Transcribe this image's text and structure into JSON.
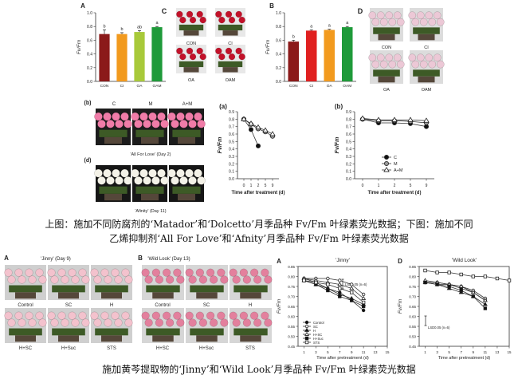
{
  "captions": {
    "line1": "上图：施加不同防腐剂的‘Matador’和‘Dolcetto’月季品种 Fv/Fm 叶绿素荧光数据；下图：施加不同",
    "line2": "乙烯抑制剂‘All For Love’和‘Afnity’月季品种 Fv/Fm 叶绿素荧光数据",
    "line3": "施加黄芩提取物的‘Jinny’和‘Wild Look’月季品种 Fv/Fm 叶绿素荧光数据"
  },
  "photo_panels": {
    "C": {
      "letter": "C",
      "labels": [
        "CON",
        "CI",
        "OA",
        "OAM"
      ]
    },
    "D": {
      "letter": "D",
      "labels": [
        "CON",
        "CI",
        "OA",
        "OAM"
      ]
    },
    "b": {
      "letter": "(b)",
      "labels": [
        "C",
        "M",
        "A+M"
      ],
      "caption": "'All For Love' (Day 2)"
    },
    "d": {
      "letter": "(d)",
      "caption": "'Afinity' (Day 11)"
    },
    "A2": {
      "letter": "A",
      "title": "'Jinny' (Day 9)",
      "labels": [
        "Control",
        "SC",
        "H",
        "H+SC",
        "H+Suc",
        "STS"
      ]
    },
    "B2": {
      "letter": "B",
      "title": "'Wild Look' (Day 13)",
      "labels": [
        "Control",
        "SC",
        "H",
        "H+SC",
        "H+Suc",
        "STS"
      ]
    }
  },
  "colors": {
    "bar_dark_red": "#8b1a1a",
    "bar_red": "#e02020",
    "bar_orange": "#f29a1e",
    "bar_yellow_green": "#a8c93a",
    "bar_green": "#1f9a3a",
    "axis": "#333333"
  },
  "chart_data": [
    {
      "id": "A",
      "type": "bar",
      "panel_label": "A",
      "categories": [
        "CON",
        "CI",
        "OA",
        "OAM"
      ],
      "values": [
        0.69,
        0.69,
        0.72,
        0.79
      ],
      "errors": [
        0.06,
        0.02,
        0.02,
        0.01
      ],
      "letters": [
        "b",
        "b",
        "ab",
        "a"
      ],
      "colors": [
        "#8b1a1a",
        "#f29a1e",
        "#a8c93a",
        "#1f9a3a"
      ],
      "ylabel": "Fv/Fm",
      "ylim": [
        0.0,
        1.0
      ],
      "yticks": [
        "0.0",
        "0.2",
        "0.4",
        "0.6",
        "0.8",
        "1.0"
      ]
    },
    {
      "id": "B",
      "type": "bar",
      "panel_label": "B",
      "categories": [
        "CON",
        "CI",
        "OA",
        "OAM"
      ],
      "values": [
        0.58,
        0.74,
        0.75,
        0.79
      ],
      "errors": [
        0.02,
        0.01,
        0.01,
        0.01
      ],
      "letters": [
        "b",
        "a",
        "a",
        "a"
      ],
      "colors": [
        "#8b1a1a",
        "#e02020",
        "#f29a1e",
        "#1f9a3a"
      ],
      "ylabel": "Fv/Fm",
      "ylim": [
        0.0,
        1.0
      ],
      "yticks": [
        "0.0",
        "0.2",
        "0.4",
        "0.6",
        "0.8",
        "1.0"
      ]
    },
    {
      "id": "a",
      "type": "line",
      "panel_label": "(a)",
      "x_ticks": [
        "0",
        "1",
        "2",
        "5",
        "9"
      ],
      "xlabel": "Time after treatment (d)",
      "ylabel": "Fv/Fm",
      "ylim": [
        0.0,
        0.9
      ],
      "yticks": [
        "0.0",
        "0.1",
        "0.2",
        "0.3",
        "0.4",
        "0.5",
        "0.6",
        "0.7",
        "0.8",
        "0.9"
      ],
      "series": [
        {
          "marker": "filled-circle",
          "values": [
            0.8,
            0.66,
            0.44,
            null,
            null
          ]
        },
        {
          "marker": "gray-circle",
          "values": [
            0.8,
            0.73,
            0.67,
            0.63,
            0.57
          ]
        },
        {
          "marker": "open-triangle",
          "values": [
            0.8,
            0.74,
            0.69,
            0.65,
            0.6
          ]
        }
      ]
    },
    {
      "id": "b_line",
      "type": "line",
      "panel_label": "(b)",
      "x_ticks": [
        "0",
        "1",
        "2",
        "5",
        "9"
      ],
      "xlabel": "Time after treatment (d)",
      "ylabel": "Fv/Fm",
      "ylim": [
        0.0,
        0.9
      ],
      "yticks": [
        "0.0",
        "0.1",
        "0.2",
        "0.3",
        "0.4",
        "0.5",
        "0.6",
        "0.7",
        "0.8",
        "0.9"
      ],
      "legend": [
        "C",
        "M",
        "A+M"
      ],
      "series": [
        {
          "name": "C",
          "marker": "filled-circle",
          "values": [
            0.8,
            0.75,
            0.75,
            0.74,
            0.7
          ]
        },
        {
          "name": "M",
          "marker": "gray-circle",
          "values": [
            0.8,
            0.78,
            0.78,
            0.77,
            0.75
          ]
        },
        {
          "name": "A+M",
          "marker": "open-triangle",
          "values": [
            0.81,
            0.79,
            0.79,
            0.79,
            0.78
          ]
        }
      ]
    },
    {
      "id": "Jinny",
      "type": "line",
      "panel_label": "A",
      "title": "'Jinny'",
      "x": [
        1,
        3,
        5,
        7,
        9,
        11
      ],
      "xticks": [
        "1",
        "3",
        "5",
        "7",
        "9",
        "11",
        "13",
        "15"
      ],
      "xlabel": "Time after pretreatment (d)",
      "ylabel": "Fv/Fm",
      "ylim": [
        0.45,
        0.85
      ],
      "yticks": [
        "0.45",
        "0.50",
        "0.55",
        "0.60",
        "0.65",
        "0.70",
        "0.75",
        "0.80",
        "0.85"
      ],
      "lsd_label": "LSD0.05 (n=6)",
      "legend": [
        "Control",
        "SC",
        "H",
        "H+SC",
        "H+Suc",
        "STS"
      ],
      "series": [
        {
          "name": "Control",
          "marker": "filled-circle",
          "values": [
            0.79,
            0.77,
            0.74,
            0.72,
            0.68,
            0.63
          ]
        },
        {
          "name": "SC",
          "marker": "open-circle",
          "values": [
            0.79,
            0.79,
            0.79,
            0.78,
            0.76,
            0.71
          ]
        },
        {
          "name": "H",
          "marker": "filled-triangle",
          "values": [
            0.78,
            0.76,
            0.74,
            0.71,
            0.69,
            0.66
          ]
        },
        {
          "name": "H+SC",
          "marker": "open-triangle",
          "values": [
            0.79,
            0.78,
            0.77,
            0.76,
            0.74,
            0.69
          ]
        },
        {
          "name": "H+Suc",
          "marker": "filled-square",
          "values": [
            0.78,
            0.76,
            0.73,
            0.7,
            0.68,
            0.65
          ]
        },
        {
          "name": "STS",
          "marker": "open-square",
          "values": [
            0.78,
            0.77,
            0.76,
            0.74,
            0.72,
            0.67
          ]
        }
      ]
    },
    {
      "id": "WildLook",
      "type": "line",
      "panel_label": "D",
      "title": "'Wild Look'",
      "x": [
        1,
        3,
        5,
        7,
        9,
        11,
        13,
        15
      ],
      "xticks": [
        "1",
        "3",
        "5",
        "7",
        "9",
        "11",
        "13",
        "15"
      ],
      "xlabel": "Time after pretreatment (d)",
      "ylabel": "Fv/Fm",
      "ylim": [
        0.45,
        0.85
      ],
      "yticks": [
        "0.45",
        "0.50",
        "0.55",
        "0.60",
        "0.65",
        "0.70",
        "0.75",
        "0.80",
        "0.85"
      ],
      "lsd_label": "LSD0.05 (n=6)",
      "series": [
        {
          "name": "Control",
          "marker": "filled-circle",
          "values": [
            0.77,
            0.77,
            0.76,
            0.74,
            0.72,
            0.68,
            null,
            null
          ]
        },
        {
          "name": "SC",
          "marker": "open-circle",
          "values": [
            0.77,
            0.76,
            0.76,
            0.75,
            0.73,
            0.69,
            null,
            null
          ]
        },
        {
          "name": "H",
          "marker": "filled-triangle",
          "values": [
            0.77,
            0.76,
            0.74,
            0.72,
            0.7,
            0.66,
            null,
            null
          ]
        },
        {
          "name": "H+SC",
          "marker": "open-triangle",
          "values": [
            0.78,
            0.77,
            0.76,
            0.75,
            0.72,
            0.68,
            null,
            null
          ]
        },
        {
          "name": "H+Suc",
          "marker": "filled-square",
          "values": [
            0.77,
            0.76,
            0.75,
            0.73,
            0.7,
            0.64,
            null,
            null
          ]
        },
        {
          "name": "STS",
          "marker": "open-square",
          "values": [
            0.83,
            0.82,
            0.82,
            0.81,
            0.8,
            0.8,
            0.79,
            0.78
          ]
        }
      ]
    }
  ]
}
